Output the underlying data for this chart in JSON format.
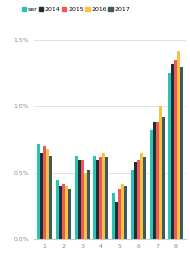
{
  "categories": [
    1,
    2,
    3,
    4,
    5,
    6,
    7,
    8
  ],
  "series": {
    "ser": [
      0.0072,
      0.0045,
      0.0063,
      0.0063,
      0.0035,
      0.0052,
      0.0082,
      0.0125
    ],
    "2014": [
      0.0065,
      0.004,
      0.006,
      0.006,
      0.0028,
      0.0058,
      0.0088,
      0.0132
    ],
    "2015": [
      0.007,
      0.0042,
      0.006,
      0.0062,
      0.0038,
      0.006,
      0.0088,
      0.0135
    ],
    "2016": [
      0.0068,
      0.004,
      0.005,
      0.0065,
      0.0042,
      0.0065,
      0.01,
      0.0142
    ],
    "2017": [
      0.0063,
      0.0038,
      0.0052,
      0.0062,
      0.004,
      0.0062,
      0.0092,
      0.013
    ]
  },
  "colors": {
    "ser": "#2bc4b4",
    "2014": "#1e2e36",
    "2015": "#f05a54",
    "2016": "#f5c242",
    "2017": "#3d5a63"
  },
  "legend_labels": [
    "ser",
    "2014",
    "2015",
    "2016",
    "2017"
  ],
  "ylim": [
    0.0,
    0.016
  ],
  "yticks": [
    0.0,
    0.005,
    0.01,
    0.015
  ],
  "ytick_labels": [
    "0.0%",
    "0.5%",
    "1.0%",
    "1.5%"
  ],
  "background_color": "#ffffff",
  "grid_color": "#d8d8d8",
  "bar_width": 0.16,
  "legend_fontsize": 4.5,
  "tick_fontsize": 4.5
}
